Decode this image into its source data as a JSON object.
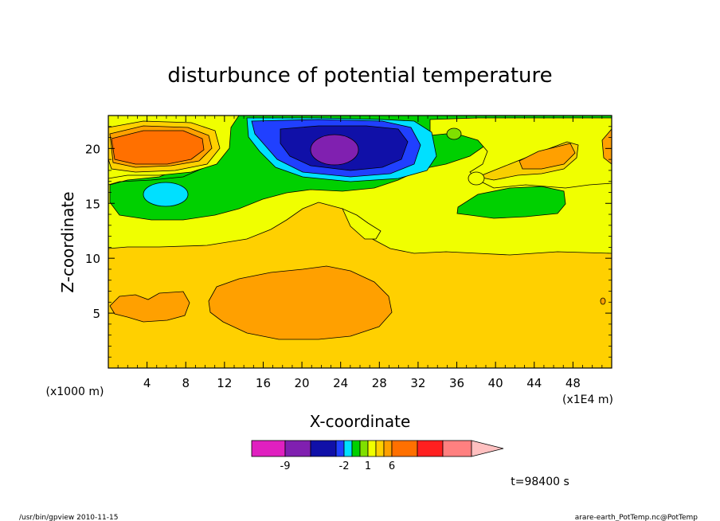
{
  "chart_data": {
    "type": "heatmap",
    "title": "disturbunce of potential temperature",
    "xlabel": "X-coordinate",
    "ylabel": "Z-coordinate",
    "x_unit_left": "(x1000 m)",
    "x_unit_right": "(x1E4 m)",
    "xlim": [
      0,
      52
    ],
    "ylim": [
      0,
      23
    ],
    "x_ticks": [
      4,
      8,
      12,
      16,
      20,
      24,
      28,
      32,
      36,
      40,
      44,
      48
    ],
    "y_ticks": [
      5,
      10,
      15,
      20
    ],
    "colorbar": {
      "levels": [
        -12,
        -9,
        -6,
        -3,
        -2,
        -1,
        0,
        1,
        2,
        3,
        6,
        9,
        12
      ],
      "colors": [
        "#e020c0",
        "#8020b0",
        "#1010a8",
        "#2040ff",
        "#00e0ff",
        "#00d000",
        "#80e000",
        "#f0ff00",
        "#ffd000",
        "#ffa000",
        "#ff7000",
        "#ff2020",
        "#ff8080",
        "#ffc0c0"
      ],
      "tick_labels": [
        "-9",
        "-2",
        "1",
        "6"
      ],
      "tick_values": [
        -9,
        -2,
        1,
        6
      ]
    },
    "features": [
      {
        "kind": "warm",
        "value": 6,
        "x": 5,
        "z": 20
      },
      {
        "kind": "cold",
        "value": -9,
        "x": 23,
        "z": 19.5
      },
      {
        "kind": "cold",
        "value": -2,
        "x": 5.5,
        "z": 15.5
      },
      {
        "kind": "warm",
        "value": 3,
        "x": 22,
        "z": 6
      },
      {
        "kind": "warm",
        "value": 3,
        "x": 3.5,
        "z": 5.5
      },
      {
        "kind": "warm",
        "value": 3,
        "x": 45,
        "z": 19
      }
    ]
  },
  "annotations": {
    "time": "t=98400 s",
    "footer_left": "/usr/bin/gpview   2010-11-15",
    "footer_right": "arare-earth_PotTemp.nc@PotTemp"
  }
}
